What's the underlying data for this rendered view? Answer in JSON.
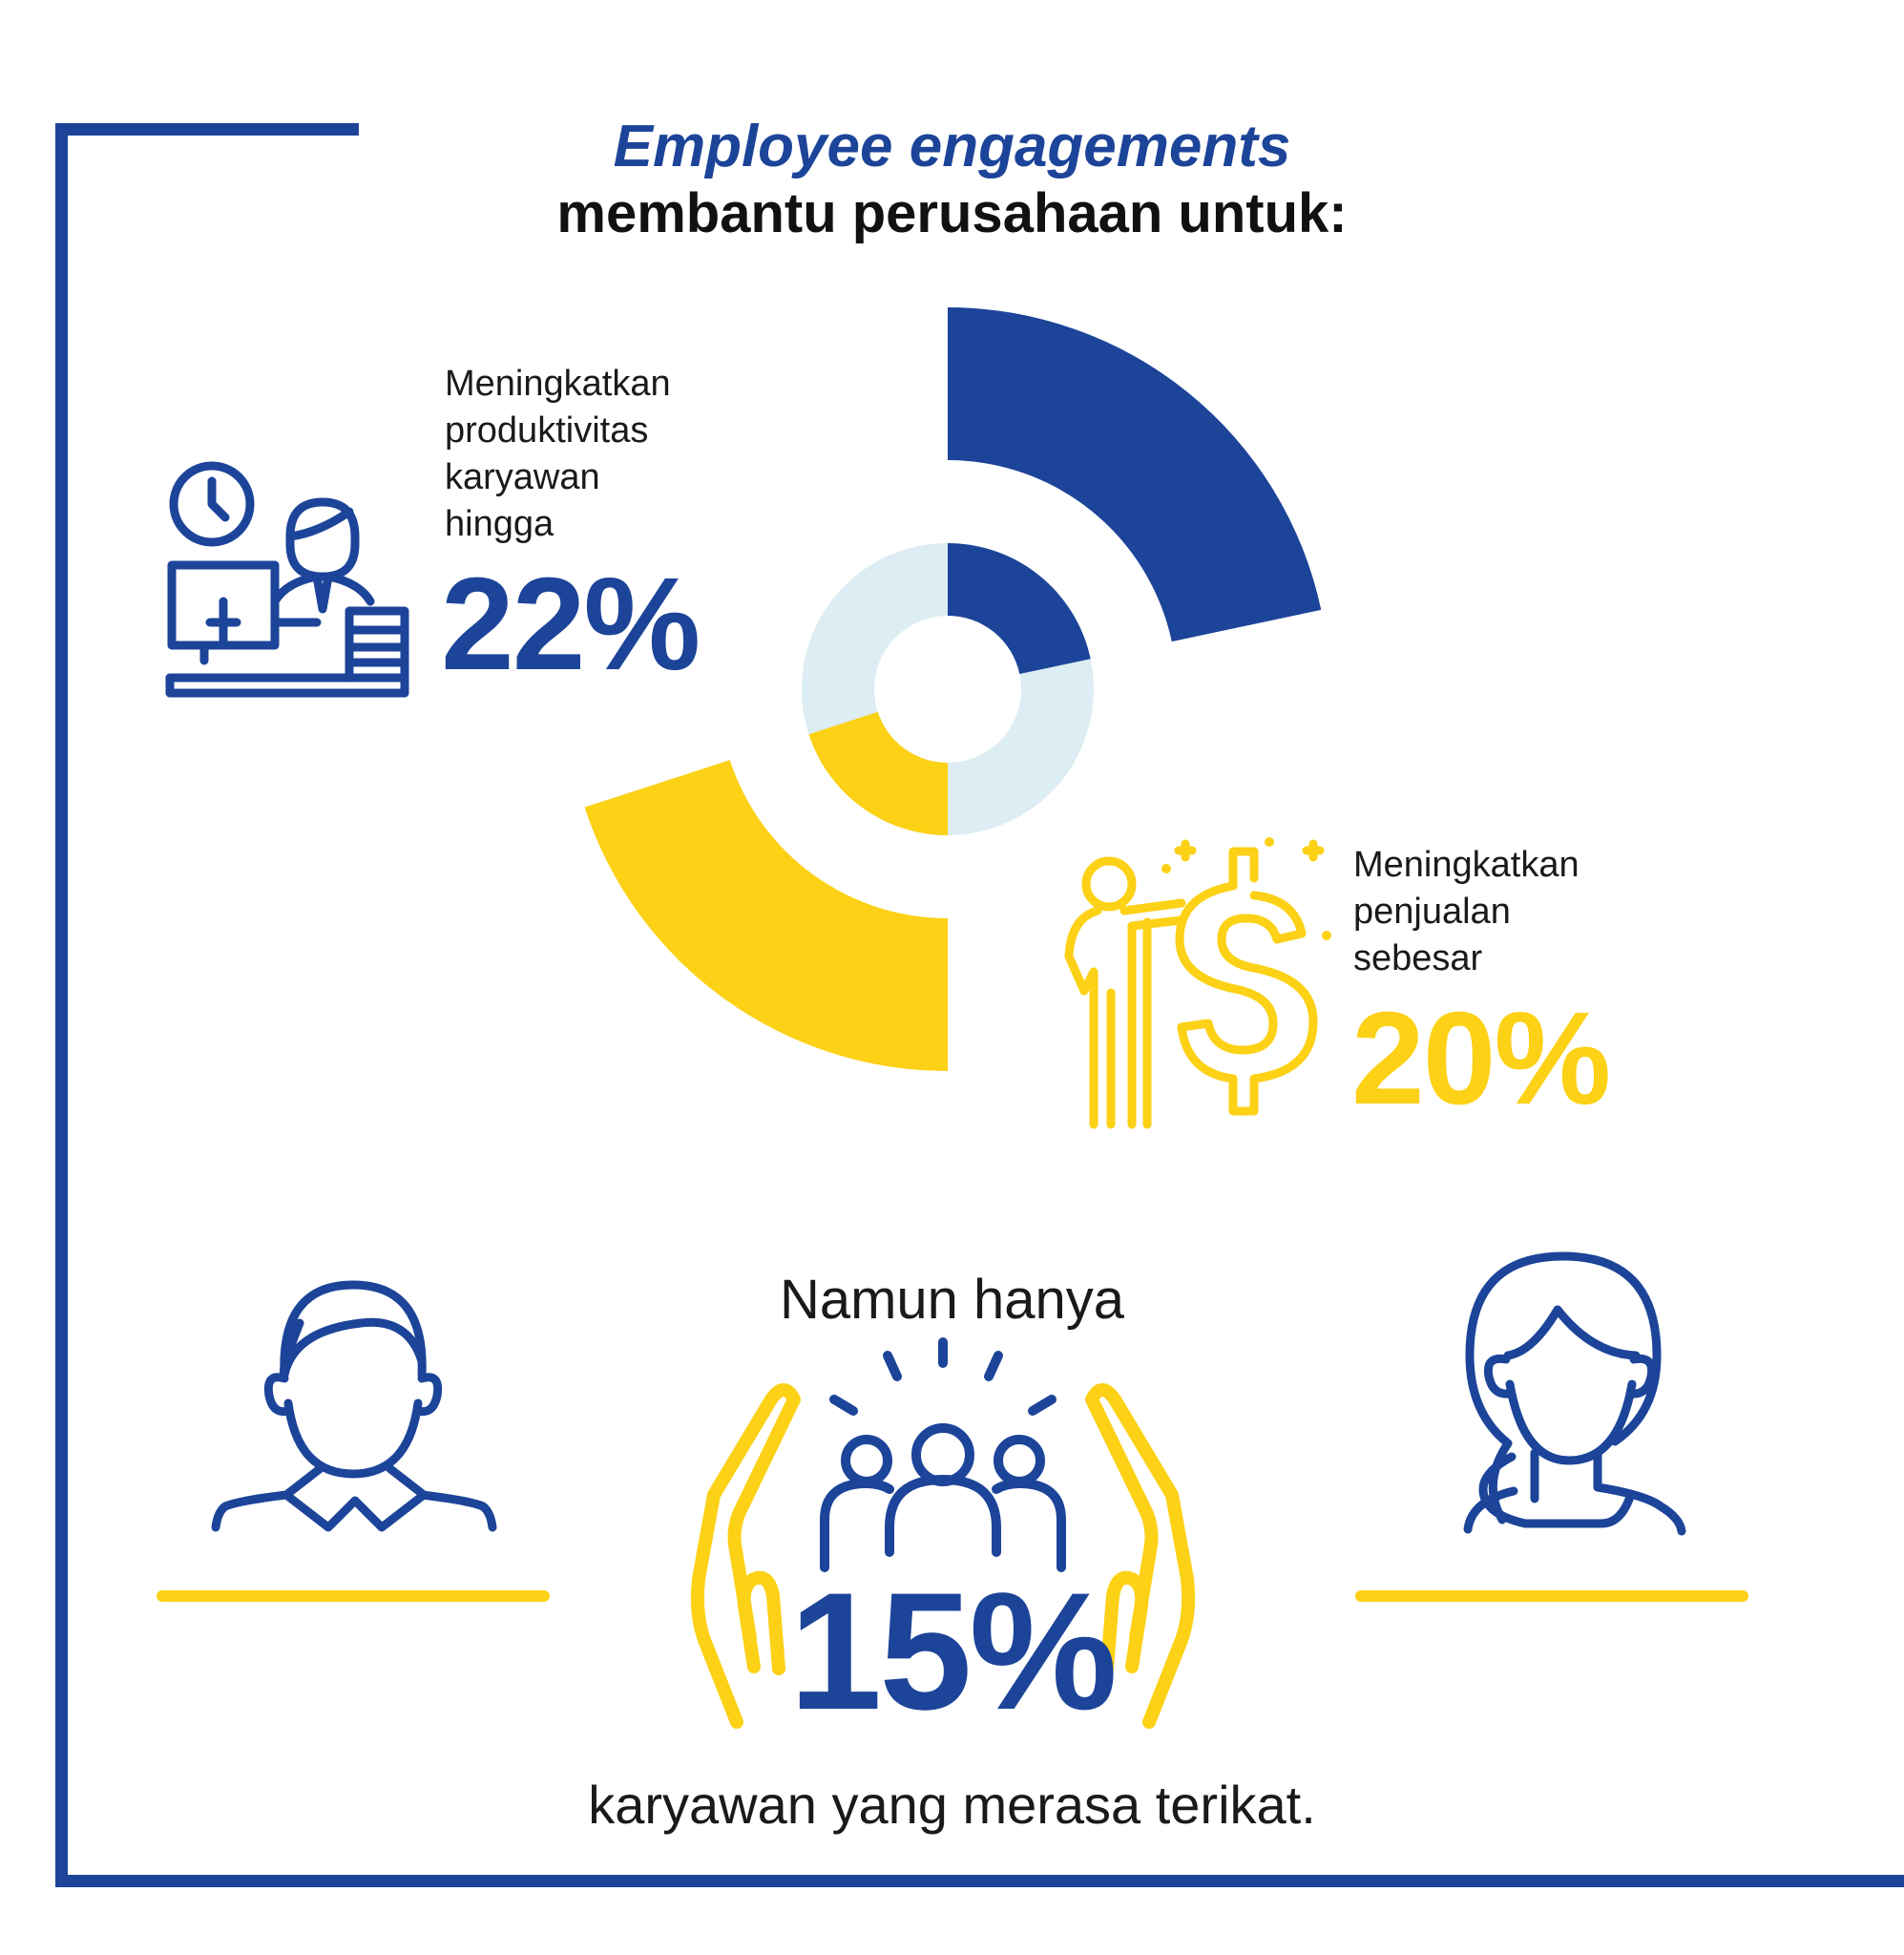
{
  "heading": {
    "title": "Employee engagements",
    "subtitle": "membantu perusahaan untuk:"
  },
  "stats": [
    {
      "label": "Meningkatkan\nproduktivitas\nkaryawan\nhingga",
      "value": "22%",
      "icon": "office-worker-icon",
      "color": "#1c4499"
    },
    {
      "label": "Meningkatkan\npenjualan\nsebesar",
      "value": "20%",
      "icon": "person-dollar-icon",
      "color": "#fcd116"
    }
  ],
  "chart_data": {
    "type": "donut",
    "segments": [
      {
        "value": 22,
        "color": "#1c4499"
      },
      {
        "value": 20,
        "color": "#fcd116"
      }
    ],
    "track_color": "#dcedf3"
  },
  "bottom": {
    "intro": "Namun hanya",
    "value": "15%",
    "caption": "karyawan yang merasa terikat."
  },
  "colors": {
    "blue": "#1c4499",
    "yellow": "#fcd116",
    "light": "#dcedf3"
  }
}
